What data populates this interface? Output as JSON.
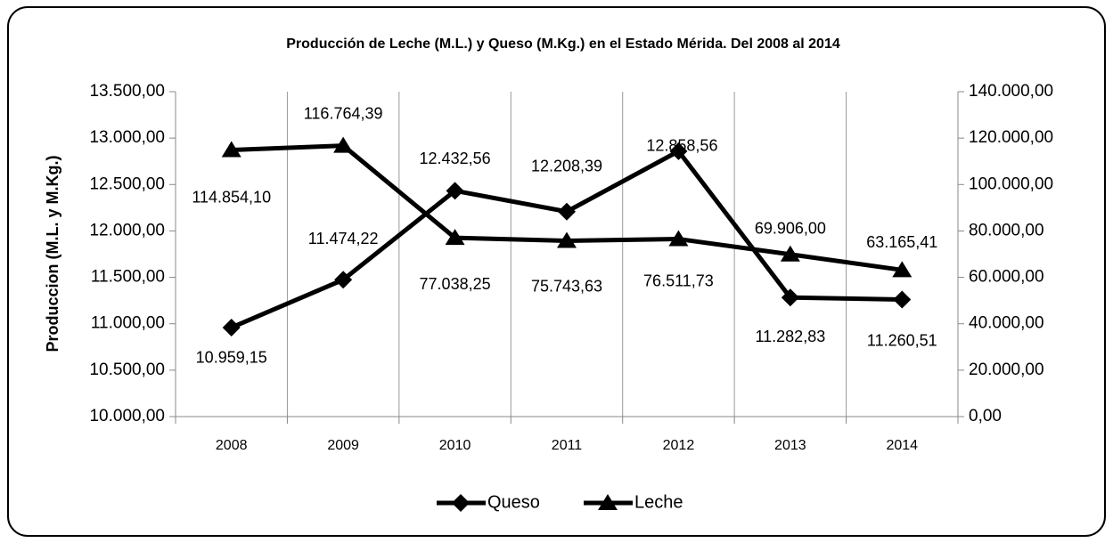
{
  "chart_data": {
    "type": "line",
    "title": "Producción de Leche (M.L.) y Queso (M.Kg.) en el Estado Mérida. Del 2008 al 2014",
    "y_label": "Produccion (M.L. y M.Kg.)",
    "categories": [
      "2008",
      "2009",
      "2010",
      "2011",
      "2012",
      "2013",
      "2014"
    ],
    "series": [
      {
        "name": "Queso",
        "color": "#000000",
        "marker": "diamond",
        "values": [
          10959.15,
          11474.22,
          12432.56,
          12208.39,
          12858.56,
          11282.83,
          11260.51
        ],
        "value_labels": [
          "10.959,15",
          "11.474,22",
          "12.432,56",
          "12.208,39",
          "12.858,56",
          "11.282,83",
          "11.260,51"
        ]
      },
      {
        "name": "Leche",
        "color": "#000000",
        "marker": "triangle",
        "axis": "y2",
        "values": [
          114854.1,
          116764.39,
          77038.25,
          75743.63,
          76511.73,
          69906.0,
          63165.41
        ],
        "value_labels": [
          "114.854,10",
          "116.764,39",
          "77.038,25",
          "75.743,63",
          "76.511,73",
          "69.906,00",
          "63.165,41"
        ]
      }
    ],
    "ylim": [
      10000,
      13500
    ],
    "yticks": [
      {
        "value": 10000,
        "label": "10.000,00"
      },
      {
        "value": 10500,
        "label": "10.500,00"
      },
      {
        "value": 11000,
        "label": "11.000,00"
      },
      {
        "value": 11500,
        "label": "11.500,00"
      },
      {
        "value": 12000,
        "label": "12.000,00"
      },
      {
        "value": 12500,
        "label": "12.500,00"
      },
      {
        "value": 13000,
        "label": "13.000,00"
      },
      {
        "value": 13500,
        "label": "13.500,00"
      }
    ],
    "y2lim": [
      0,
      140000
    ],
    "y2ticks": [
      {
        "value": 0,
        "label": "0,00"
      },
      {
        "value": 20000,
        "label": "20.000,00"
      },
      {
        "value": 40000,
        "label": "40.000,00"
      },
      {
        "value": 60000,
        "label": "60.000,00"
      },
      {
        "value": 80000,
        "label": "80.000,00"
      },
      {
        "value": 100000,
        "label": "100.000,00"
      },
      {
        "value": 120000,
        "label": "120.000,00"
      },
      {
        "value": 140000,
        "label": "140.000,00"
      }
    ],
    "grid": "x",
    "legend": "bottom"
  }
}
